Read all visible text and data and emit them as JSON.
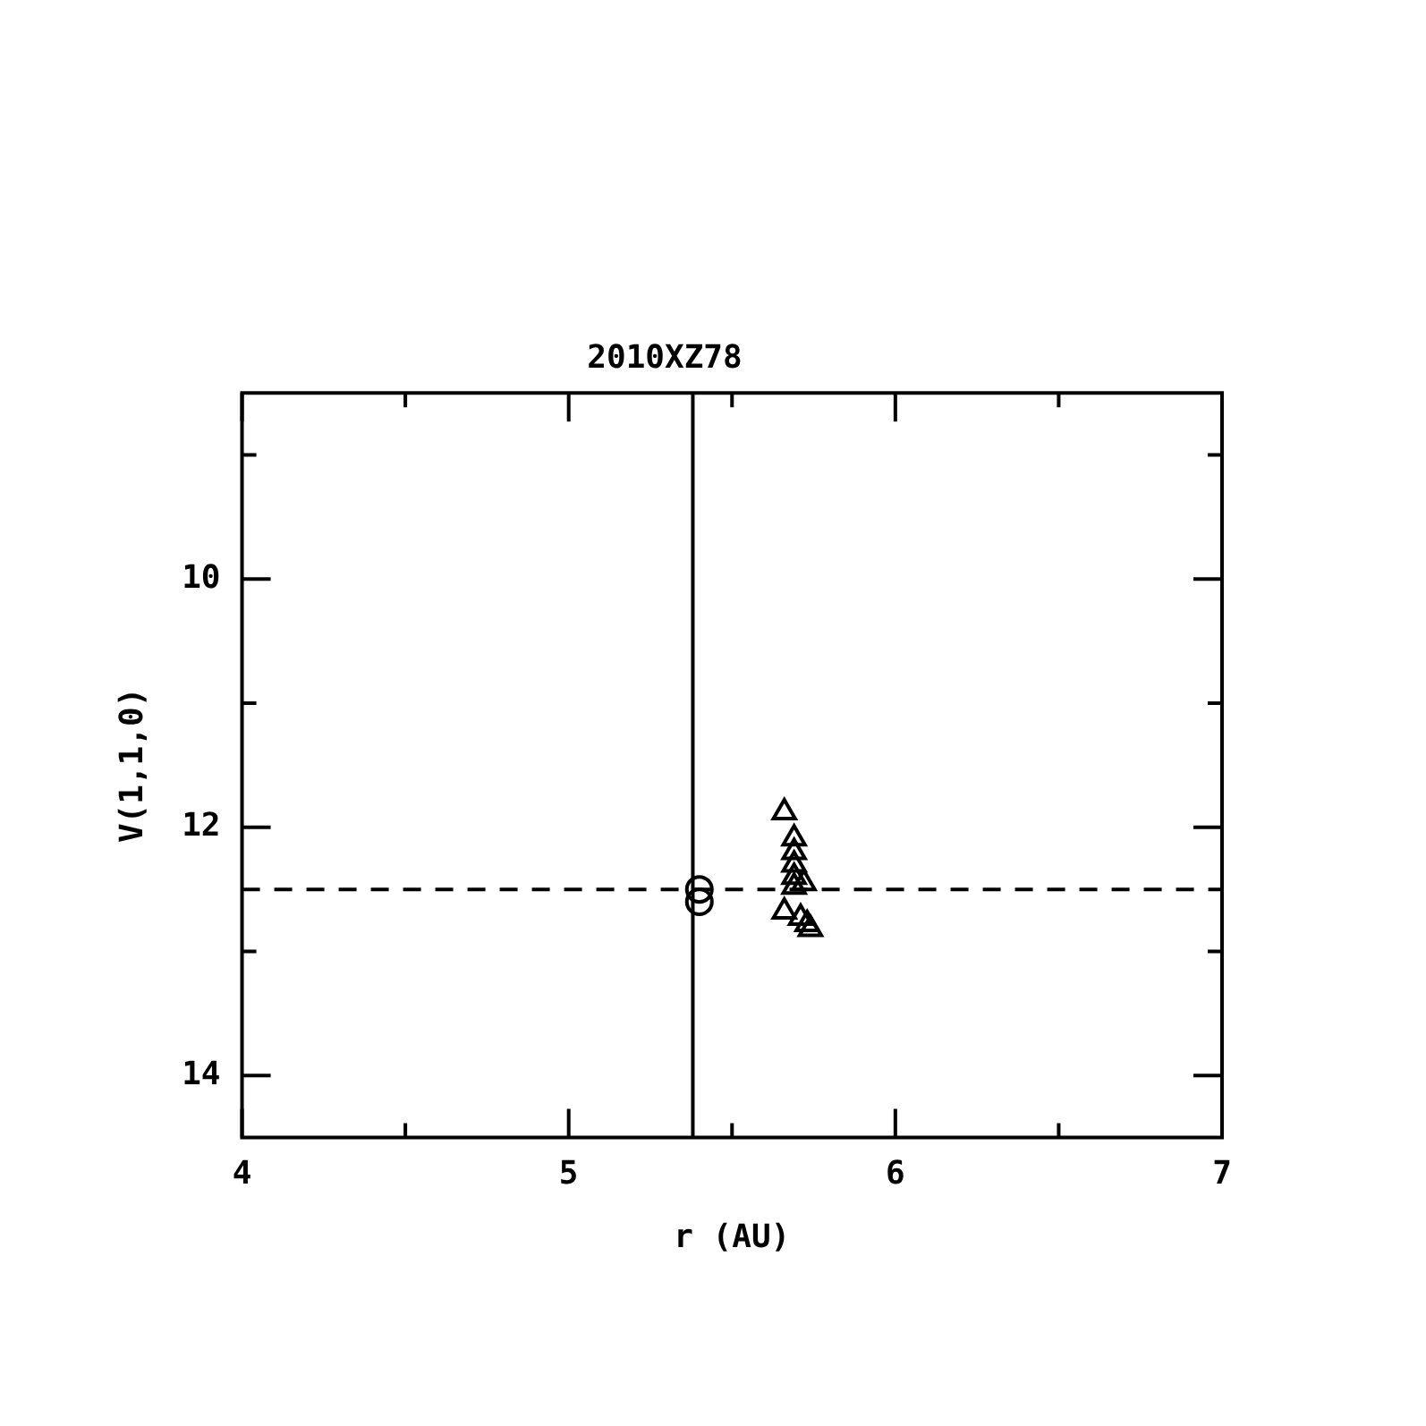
{
  "chart_data": {
    "type": "scatter",
    "title": "2010XZ78",
    "xlabel": "r (AU)",
    "ylabel": "V(1,1,0)",
    "xlim": [
      4,
      7
    ],
    "ylim": [
      14.5,
      8.5
    ],
    "xticks": [
      4,
      5,
      6,
      7
    ],
    "yticks": [
      10,
      12,
      14
    ],
    "grid": false,
    "legend": false,
    "series": [
      {
        "marker": "circle",
        "color": "#000000",
        "x": [
          5.4,
          5.4
        ],
        "values": [
          12.5,
          12.6
        ]
      },
      {
        "marker": "triangle",
        "color": "#000000",
        "x": [
          5.66,
          5.69,
          5.69,
          5.69,
          5.69,
          5.69,
          5.72,
          5.66,
          5.71,
          5.73,
          5.74
        ],
        "values": [
          11.88,
          12.09,
          12.2,
          12.3,
          12.4,
          12.48,
          12.45,
          12.68,
          12.73,
          12.78,
          12.82
        ]
      }
    ],
    "ref_lines": [
      {
        "axis": "x",
        "value": 5.38,
        "line_style": "solid",
        "color": "#000000"
      },
      {
        "axis": "y",
        "value": 12.5,
        "line_style": "dashed",
        "color": "#000000"
      }
    ]
  }
}
